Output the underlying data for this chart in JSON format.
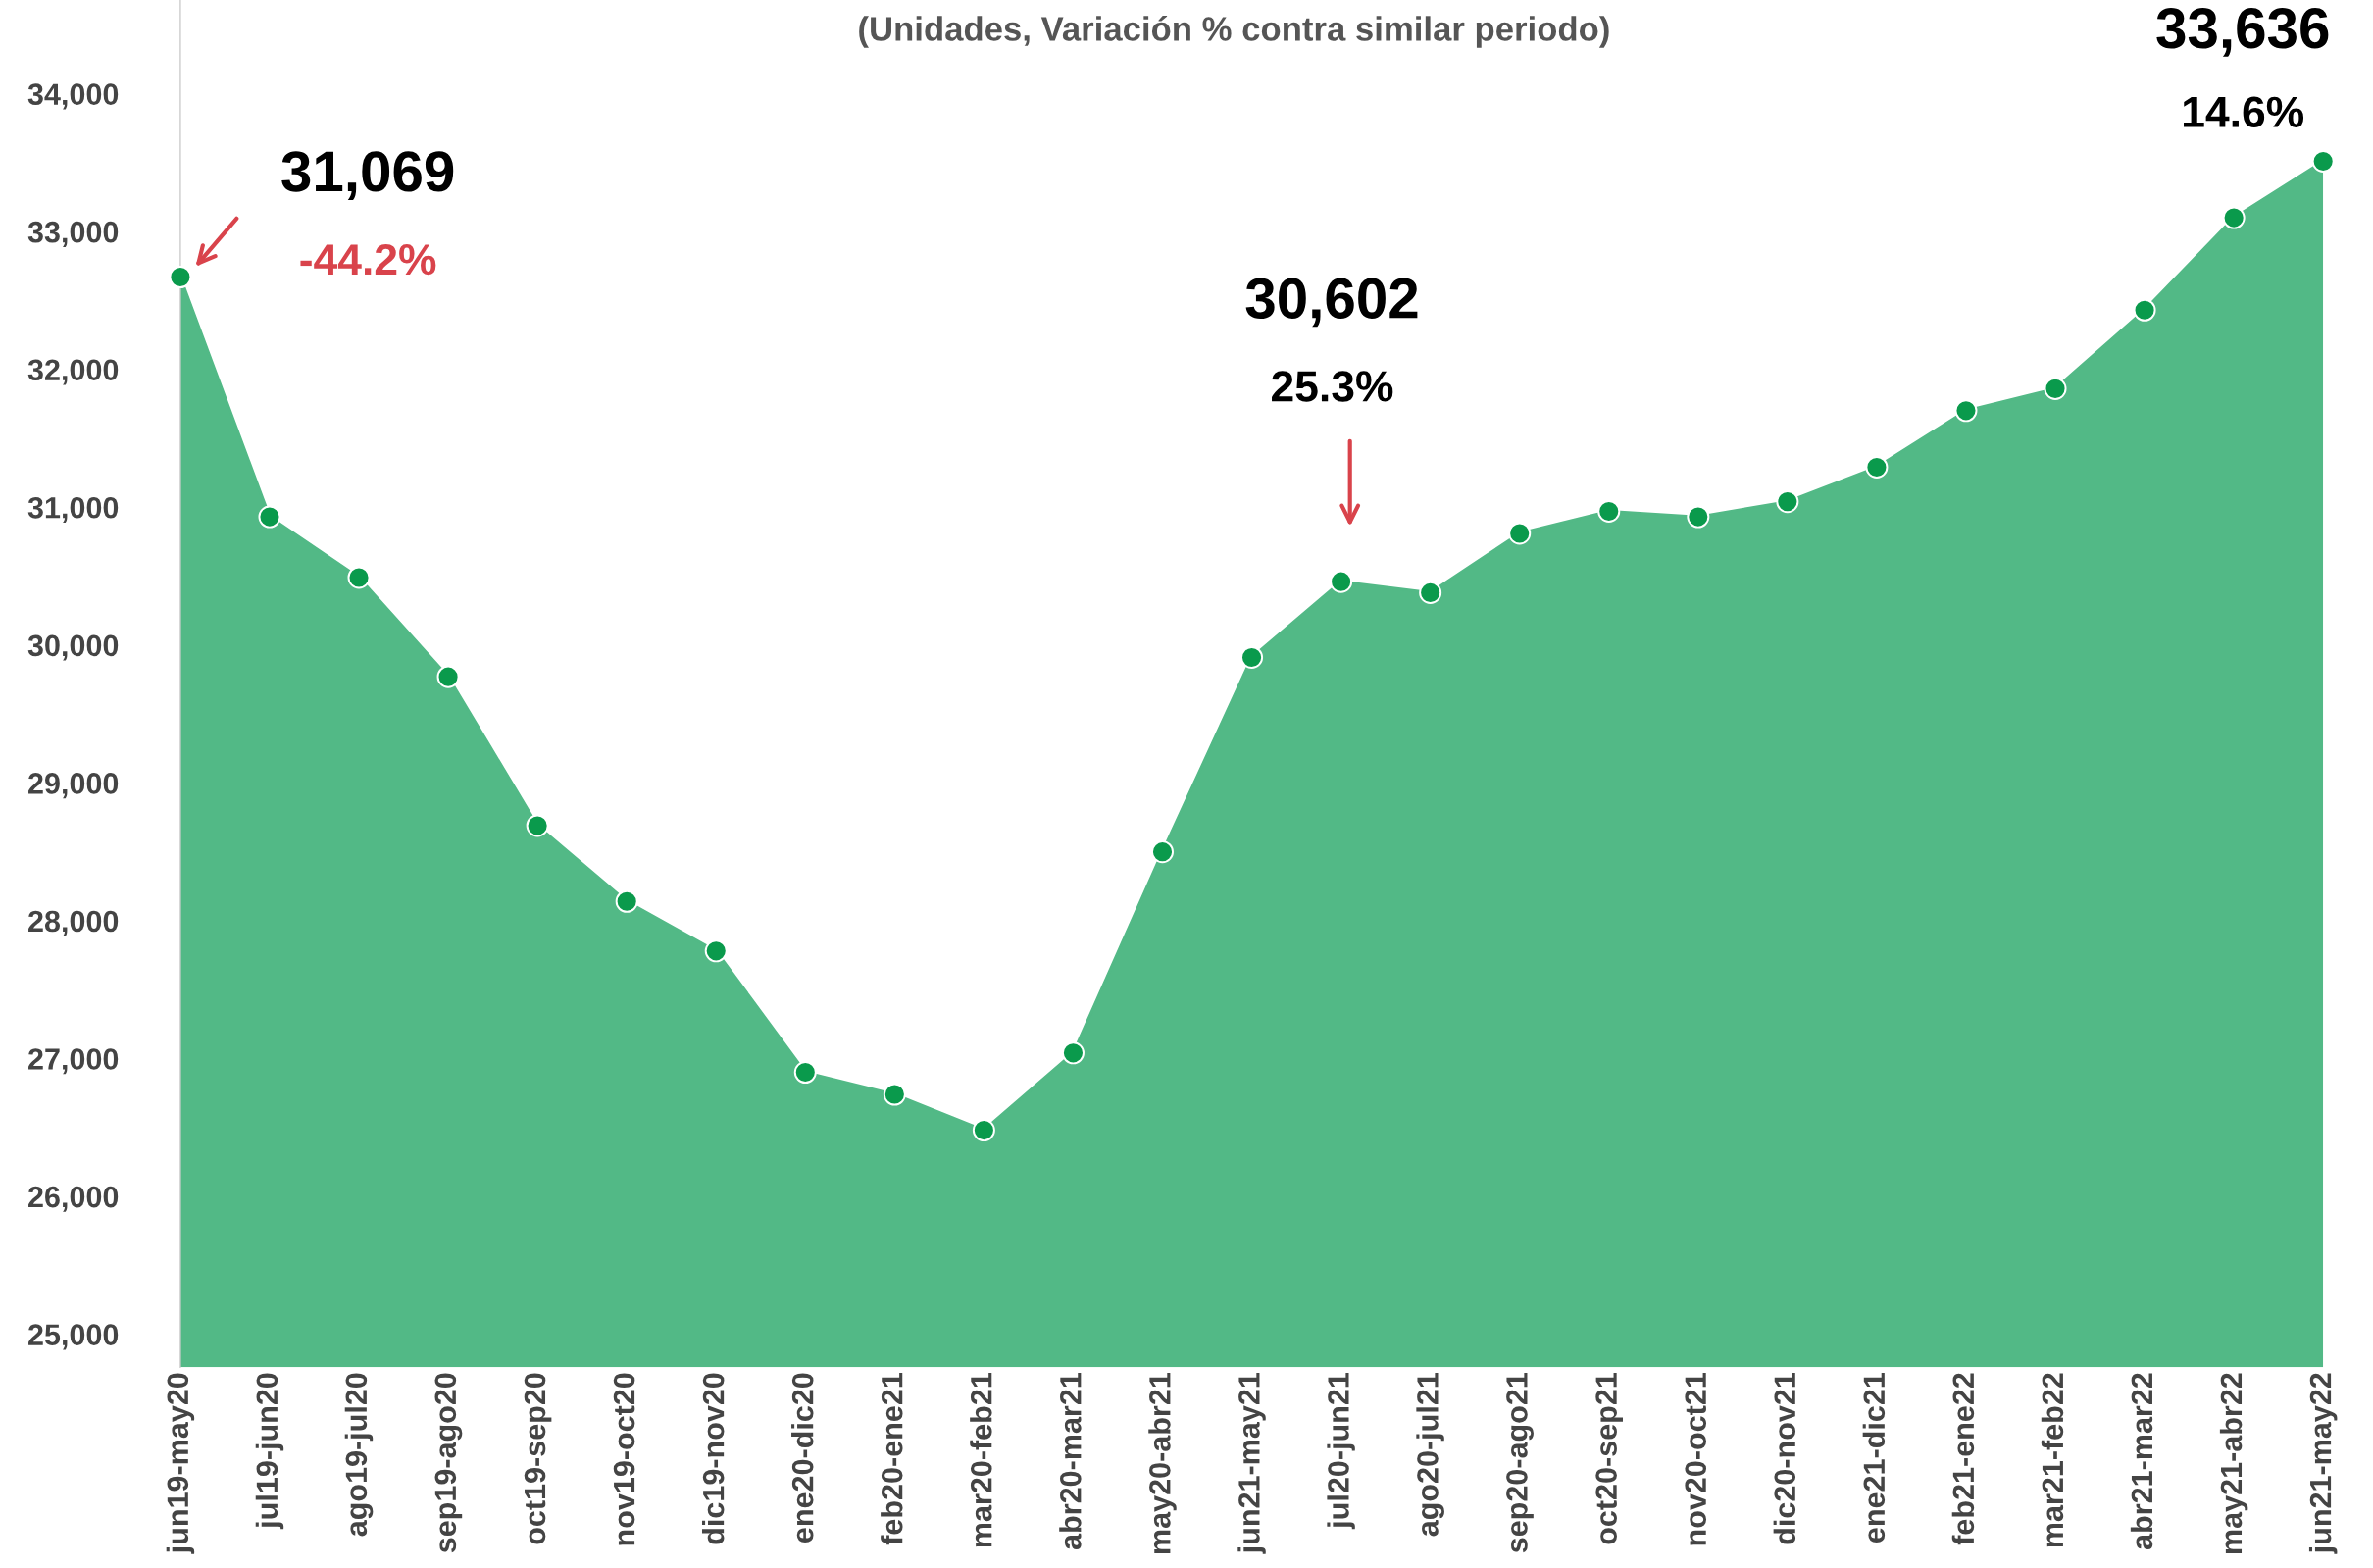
{
  "chart_data": {
    "type": "area",
    "subtitle": "(Unidades, Variación % contra similar periodo)",
    "categories": [
      "jun19-may20",
      "jul19-jun20",
      "ago19-jul20",
      "sep19-ago20",
      "oct19-sep20",
      "nov19-oct20",
      "dic19-nov20",
      "ene20-dic20",
      "feb20-ene21",
      "mar20-feb21",
      "abr20-mar21",
      "may20-abr21",
      "jun21-may21",
      "jul20-jun21",
      "ago20-jul21",
      "sep20-ago21",
      "oct20-sep21",
      "nov20-oct21",
      "dic20-nov21",
      "ene21-dic21",
      "feb21-ene22",
      "mar21-feb22",
      "abr21-mar22",
      "may21-abr22",
      "jun21-may22"
    ],
    "series": [
      {
        "color": "#52b986",
        "values": [
          32670,
          30930,
          30490,
          29770,
          28690,
          28140,
          27780,
          26900,
          26740,
          26480,
          27040,
          28500,
          29910,
          30460,
          30380,
          30810,
          30970,
          30930,
          31040,
          31290,
          31700,
          31860,
          32430,
          33100,
          33510
        ]
      }
    ],
    "marker": "circle",
    "ylim": [
      24760,
      34680
    ],
    "yticks": [
      {
        "value": 25000,
        "label": "25,000"
      },
      {
        "value": 26000,
        "label": "26,000"
      },
      {
        "value": 27000,
        "label": "27,000"
      },
      {
        "value": 28000,
        "label": "28,000"
      },
      {
        "value": 29000,
        "label": "29,000"
      },
      {
        "value": 30000,
        "label": "30,000"
      },
      {
        "value": 31000,
        "label": "31,000"
      },
      {
        "value": 32000,
        "label": "32,000"
      },
      {
        "value": 33000,
        "label": "33,000"
      },
      {
        "value": 34000,
        "label": "34,000"
      }
    ],
    "grid": false,
    "legend": false,
    "annotations": [
      "31,069",
      "-44.2%",
      "30,602",
      "25.3%",
      "33,636",
      "14.6%"
    ]
  }
}
